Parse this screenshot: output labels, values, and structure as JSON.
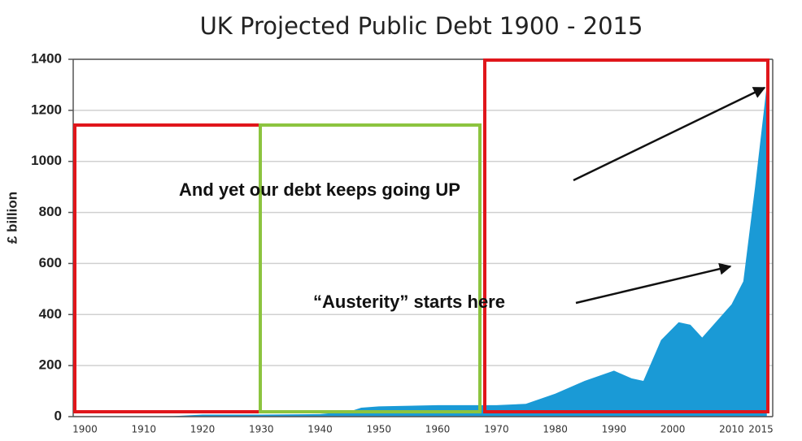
{
  "chart_data": {
    "type": "area",
    "title": "UK Projected Public Debt 1900 - 2015",
    "y_label": "£ billion",
    "x": [
      1900,
      1910,
      1915,
      1920,
      1930,
      1940,
      1945,
      1947,
      1950,
      1960,
      1970,
      1975,
      1980,
      1985,
      1990,
      1993,
      1995,
      1998,
      2001,
      2003,
      2005,
      2010,
      2012,
      2014,
      2016
    ],
    "values": [
      1,
      1,
      2,
      8,
      8,
      10,
      20,
      35,
      40,
      45,
      45,
      50,
      90,
      140,
      180,
      150,
      140,
      300,
      370,
      360,
      310,
      440,
      530,
      900,
      1300
    ],
    "color": "#1a9ad6",
    "xlim": [
      1898,
      2017
    ],
    "xticks": [
      1900,
      1910,
      1920,
      1930,
      1940,
      1950,
      1960,
      1970,
      1980,
      1990,
      2000,
      2010,
      2015
    ],
    "ylim": [
      0,
      1400
    ],
    "yticks": [
      0,
      200,
      400,
      600,
      800,
      1000,
      1200,
      1400
    ],
    "grid": true,
    "annotations": [
      "And yet our debt keeps going UP",
      "“Austerity” starts here"
    ]
  }
}
